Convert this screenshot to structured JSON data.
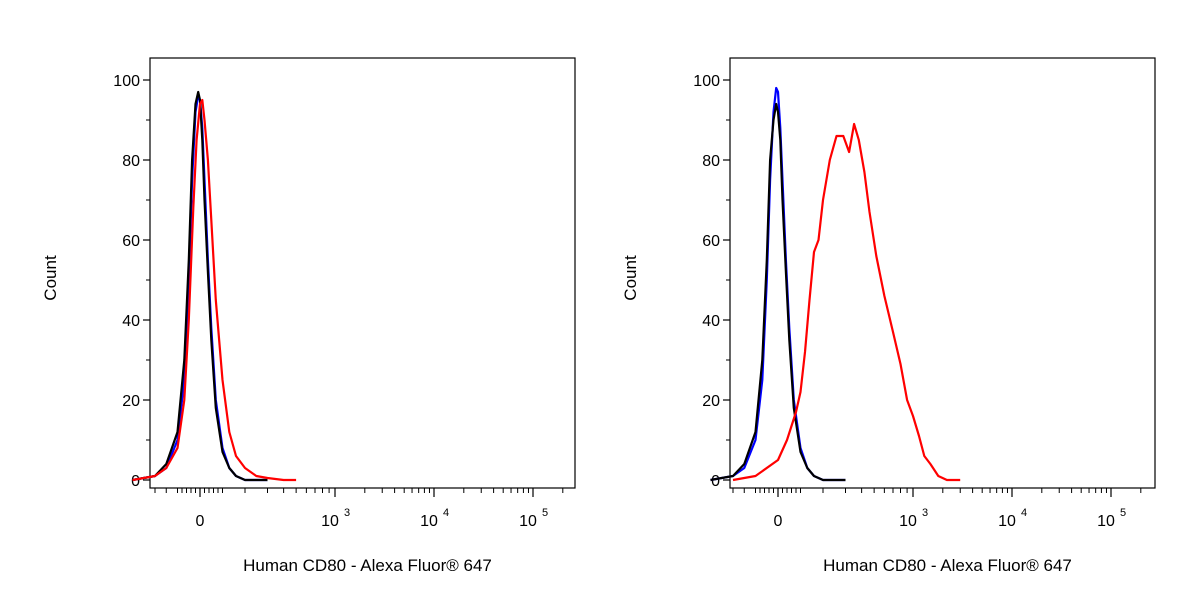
{
  "chart_data": [
    {
      "type": "line",
      "title": "",
      "xlabel": "Human CD80 - Alexa Fluor® 647",
      "ylabel": "Count",
      "xscale": "biexponential (linear near 0, log 10^3–10^5)",
      "ylim": [
        0,
        100
      ],
      "yticks": [
        0,
        20,
        40,
        60,
        80,
        100
      ],
      "xticks": [
        {
          "value": 0,
          "base": "0",
          "exp": ""
        },
        {
          "value": 1000,
          "base": "10",
          "exp": "3"
        },
        {
          "value": 10000,
          "base": "10",
          "exp": "4"
        },
        {
          "value": 100000,
          "base": "10",
          "exp": "5"
        }
      ],
      "grid": false,
      "legend": "none",
      "series": [
        {
          "color": "#0000ff",
          "x": [
            -300,
            -200,
            -150,
            -100,
            -70,
            -50,
            -35,
            -20,
            -8,
            0,
            10,
            20,
            35,
            50,
            70,
            100,
            130,
            160,
            200,
            300
          ],
          "y": [
            0,
            1,
            3,
            10,
            25,
            50,
            75,
            92,
            96,
            95,
            88,
            75,
            55,
            38,
            20,
            8,
            3,
            1,
            0,
            0
          ]
        },
        {
          "color": "#000000",
          "x": [
            -300,
            -200,
            -150,
            -100,
            -70,
            -50,
            -35,
            -20,
            -8,
            0,
            10,
            20,
            35,
            50,
            70,
            100,
            130,
            160,
            200,
            300
          ],
          "y": [
            0,
            1,
            4,
            12,
            30,
            55,
            80,
            94,
            97,
            95,
            85,
            70,
            52,
            35,
            18,
            7,
            3,
            1,
            0,
            0
          ]
        },
        {
          "color": "#ff0000",
          "x": [
            -300,
            -200,
            -150,
            -100,
            -70,
            -50,
            -30,
            -15,
            0,
            10,
            20,
            35,
            50,
            70,
            100,
            130,
            160,
            200,
            250,
            300,
            400,
            500
          ],
          "y": [
            0,
            1,
            3,
            8,
            20,
            40,
            68,
            85,
            94,
            95,
            90,
            80,
            65,
            45,
            25,
            12,
            6,
            3,
            1,
            0.5,
            0,
            0
          ]
        }
      ]
    },
    {
      "type": "line",
      "title": "",
      "xlabel": "Human CD80 - Alexa Fluor® 647",
      "ylabel": "Count",
      "xscale": "biexponential (linear near 0, log 10^3–10^5)",
      "ylim": [
        0,
        100
      ],
      "yticks": [
        0,
        20,
        40,
        60,
        80,
        100
      ],
      "xticks": [
        {
          "value": 0,
          "base": "0",
          "exp": ""
        },
        {
          "value": 1000,
          "base": "10",
          "exp": "3"
        },
        {
          "value": 10000,
          "base": "10",
          "exp": "4"
        },
        {
          "value": 100000,
          "base": "10",
          "exp": "5"
        }
      ],
      "grid": false,
      "legend": "none",
      "series": [
        {
          "color": "#0000ff",
          "x": [
            -300,
            -200,
            -150,
            -100,
            -70,
            -50,
            -35,
            -20,
            -8,
            0,
            10,
            20,
            35,
            50,
            70,
            100,
            130,
            160,
            200,
            300
          ],
          "y": [
            0,
            1,
            3,
            10,
            25,
            50,
            75,
            92,
            98,
            97,
            88,
            75,
            55,
            38,
            20,
            8,
            3,
            1,
            0,
            0
          ]
        },
        {
          "color": "#000000",
          "x": [
            -300,
            -200,
            -150,
            -100,
            -70,
            -50,
            -35,
            -20,
            -8,
            0,
            10,
            20,
            35,
            50,
            70,
            100,
            130,
            160,
            200,
            300
          ],
          "y": [
            0,
            1,
            4,
            12,
            30,
            55,
            80,
            90,
            94,
            92,
            85,
            70,
            52,
            35,
            18,
            7,
            3,
            1,
            0,
            0
          ]
        },
        {
          "color": "#ff0000",
          "x": [
            -200,
            -100,
            0,
            40,
            80,
            100,
            120,
            140,
            160,
            180,
            200,
            230,
            260,
            290,
            320,
            350,
            380,
            420,
            460,
            520,
            600,
            700,
            800,
            900,
            1000,
            1150,
            1300,
            1500,
            1800,
            2200,
            3000
          ],
          "y": [
            0,
            1,
            5,
            10,
            17,
            22,
            32,
            45,
            57,
            60,
            70,
            80,
            86,
            86,
            82,
            89,
            85,
            77,
            67,
            56,
            46,
            37,
            29,
            20,
            16,
            11,
            6,
            4,
            1,
            0,
            0
          ]
        }
      ]
    }
  ]
}
